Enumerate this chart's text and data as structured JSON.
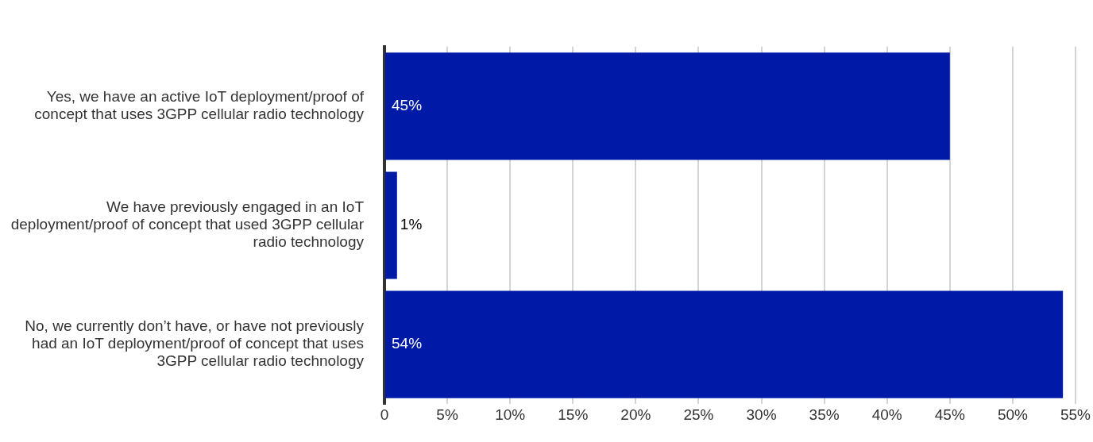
{
  "chart_data": {
    "type": "bar",
    "orientation": "horizontal",
    "categories": [
      "Yes, we have an active IoT deployment/proof of concept that uses 3GPP cellular radio technology",
      "We have previously engaged in an IoT deployment/proof of concept that used 3GPP cellular radio technology",
      "No, we currently don’t have, or have not previously had an IoT deployment/proof of concept that uses 3GPP cellular radio technology"
    ],
    "values": [
      45,
      1,
      54
    ],
    "color": "#001aa8",
    "value_labels": [
      "45%",
      "1%",
      "54%"
    ],
    "xlim": [
      0,
      55
    ],
    "xticks": [
      {
        "value": 0,
        "label": "0"
      },
      {
        "value": 5,
        "label": "5%"
      },
      {
        "value": 10,
        "label": "10%"
      },
      {
        "value": 15,
        "label": "15%"
      },
      {
        "value": 20,
        "label": "20%"
      },
      {
        "value": 25,
        "label": "25%"
      },
      {
        "value": 30,
        "label": "30%"
      },
      {
        "value": 35,
        "label": "35%"
      },
      {
        "value": 40,
        "label": "40%"
      },
      {
        "value": 45,
        "label": "45%"
      },
      {
        "value": 50,
        "label": "50%"
      },
      {
        "value": 55,
        "label": "55%"
      }
    ],
    "grid": "x",
    "legend": false
  }
}
